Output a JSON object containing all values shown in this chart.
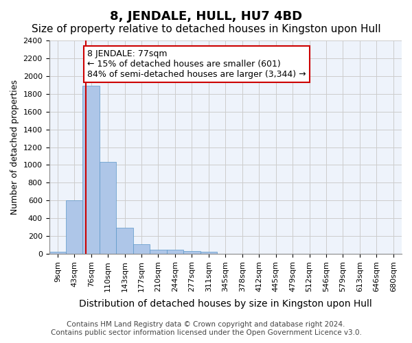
{
  "title": "8, JENDALE, HULL, HU7 4BD",
  "subtitle": "Size of property relative to detached houses in Kingston upon Hull",
  "xlabel": "Distribution of detached houses by size in Kingston upon Hull",
  "ylabel": "Number of detached properties",
  "footer_line1": "Contains HM Land Registry data © Crown copyright and database right 2024.",
  "footer_line2": "Contains public sector information licensed under the Open Government Licence v3.0.",
  "bin_labels": [
    "9sqm",
    "43sqm",
    "76sqm",
    "110sqm",
    "143sqm",
    "177sqm",
    "210sqm",
    "244sqm",
    "277sqm",
    "311sqm",
    "345sqm",
    "378sqm",
    "412sqm",
    "445sqm",
    "479sqm",
    "512sqm",
    "546sqm",
    "579sqm",
    "613sqm",
    "646sqm",
    "680sqm"
  ],
  "bar_values": [
    20,
    600,
    1890,
    1035,
    290,
    110,
    50,
    45,
    30,
    20,
    0,
    0,
    0,
    0,
    0,
    0,
    0,
    0,
    0,
    0,
    0
  ],
  "bar_color": "#aec6e8",
  "bar_edge_color": "#5a96c8",
  "grid_color": "#cccccc",
  "background_color": "#eef3fb",
  "annotation_text": "8 JENDALE: 77sqm\n← 15% of detached houses are smaller (601)\n84% of semi-detached houses are larger (3,344) →",
  "annotation_box_color": "#ffffff",
  "annotation_box_edge_color": "#cc0000",
  "vline_x": 1.67,
  "vline_color": "#cc0000",
  "ylim": [
    0,
    2400
  ],
  "yticks": [
    0,
    200,
    400,
    600,
    800,
    1000,
    1200,
    1400,
    1600,
    1800,
    2000,
    2200,
    2400
  ],
  "title_fontsize": 13,
  "subtitle_fontsize": 11,
  "xlabel_fontsize": 10,
  "ylabel_fontsize": 9,
  "tick_fontsize": 8,
  "annotation_fontsize": 9,
  "footer_fontsize": 7.5
}
